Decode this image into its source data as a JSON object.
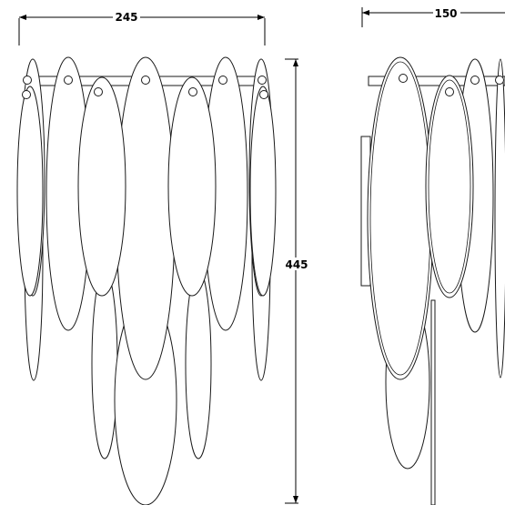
{
  "dimensions": {
    "width_label": "245",
    "height_label": "445",
    "depth_label": "150"
  }
}
